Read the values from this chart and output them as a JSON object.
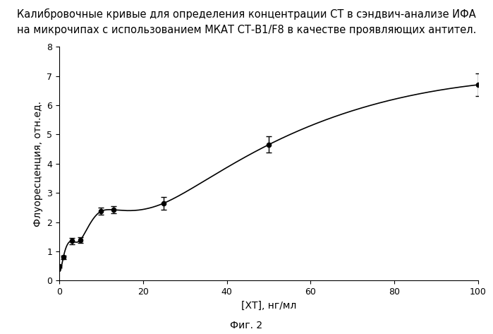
{
  "title_line1": "Калибровочные кривые для определения концентрации СТ в сэндвич-анализе ИФА",
  "title_line2": "на микрочипах с использованием МКАТ СТ-В1/F8 в качестве проявляющих антител.",
  "xlabel": "[ХТ], нг/мл",
  "ylabel": "Флуоресценция, отн.ед.",
  "caption": "Фиг. 2",
  "x_data": [
    0.0,
    1.0,
    3.0,
    5.0,
    10.0,
    13.0,
    25.0,
    50.0,
    100.0
  ],
  "y_data": [
    0.48,
    0.8,
    1.35,
    1.38,
    2.37,
    2.42,
    2.65,
    4.65,
    6.7
  ],
  "y_err": [
    0.04,
    0.06,
    0.1,
    0.1,
    0.12,
    0.12,
    0.22,
    0.28,
    0.38
  ],
  "xlim": [
    0,
    100
  ],
  "ylim": [
    0,
    8
  ],
  "xticks": [
    0,
    20,
    40,
    60,
    80,
    100
  ],
  "yticks": [
    0,
    1,
    2,
    3,
    4,
    5,
    6,
    7,
    8
  ],
  "line_color": "#000000",
  "marker_color": "#000000",
  "bg_color": "#ffffff",
  "fontsize_title": 10.5,
  "fontsize_axis_label": 10,
  "fontsize_tick": 9,
  "fontsize_caption": 10
}
